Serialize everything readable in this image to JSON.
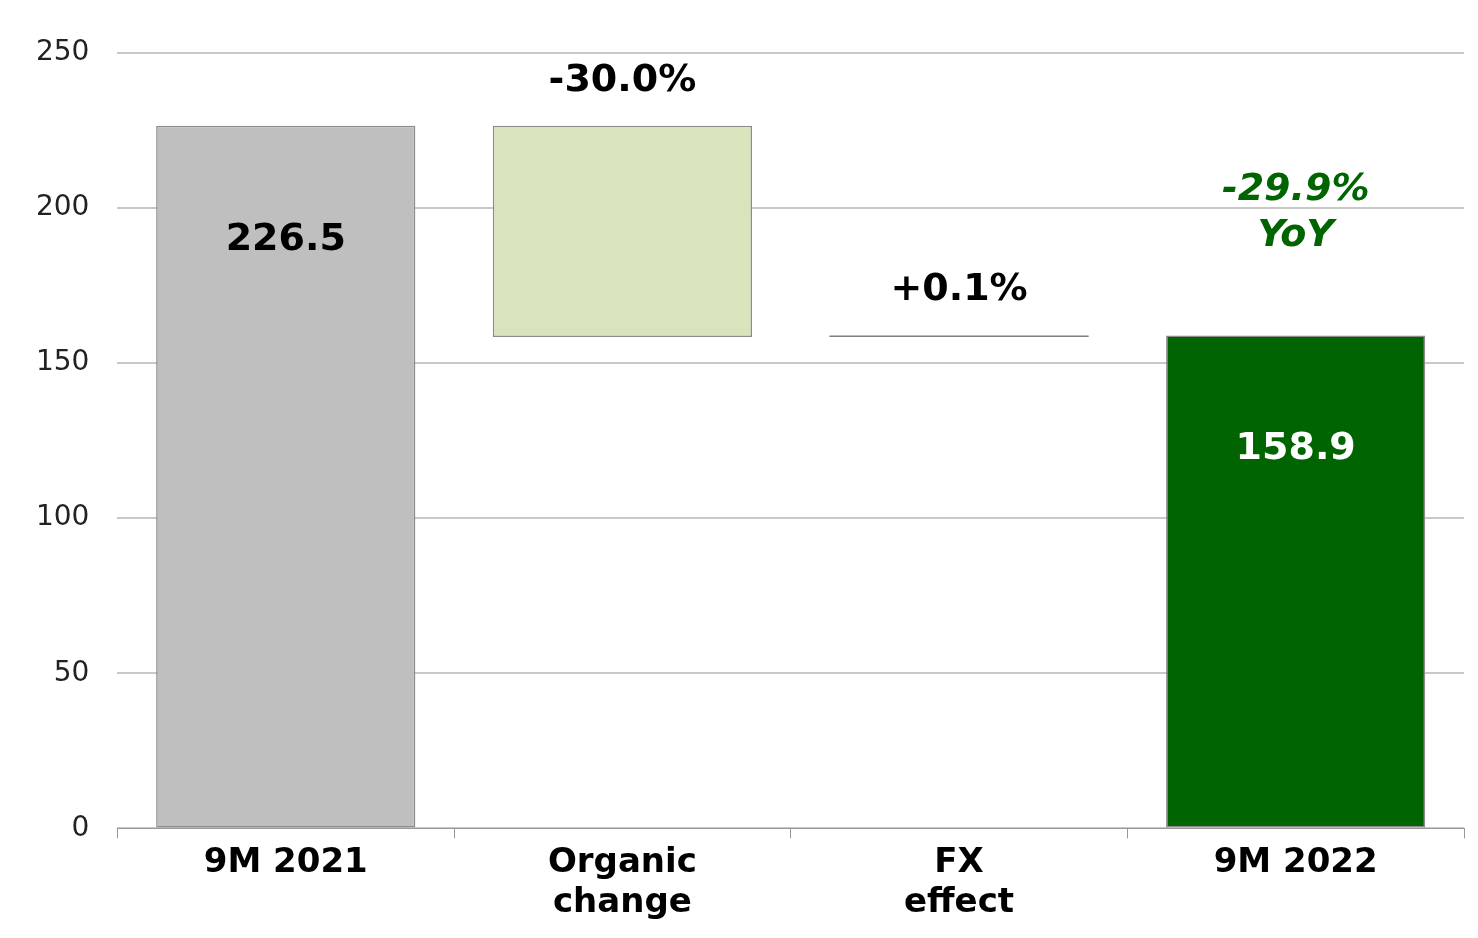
{
  "chart_data": {
    "type": "bar",
    "categories": [
      "9M 2021",
      "Organic change",
      "FX effect",
      "9M 2022"
    ],
    "values": [
      226.5,
      68.1,
      0.5,
      158.9
    ],
    "base": [
      0,
      158.4,
      158.4,
      0
    ],
    "colors": [
      "#bfbfbf",
      "#d8e4bc",
      "#7f7f7f",
      "#006400"
    ],
    "value_labels": [
      "226.5",
      null,
      null,
      "158.9"
    ],
    "annotations": [
      {
        "text": "-30.0%",
        "x": "Organic change",
        "y": 226.5
      },
      {
        "text": "+0.1%",
        "x": "FX effect",
        "y": 158.9
      },
      {
        "text": "-29.9% YoY",
        "x": "9M 2022",
        "y": 158.9
      }
    ],
    "ylim": [
      0,
      250
    ],
    "yticks": [
      0,
      50,
      100,
      150,
      200,
      250
    ],
    "grid": "y",
    "legend": false
  }
}
